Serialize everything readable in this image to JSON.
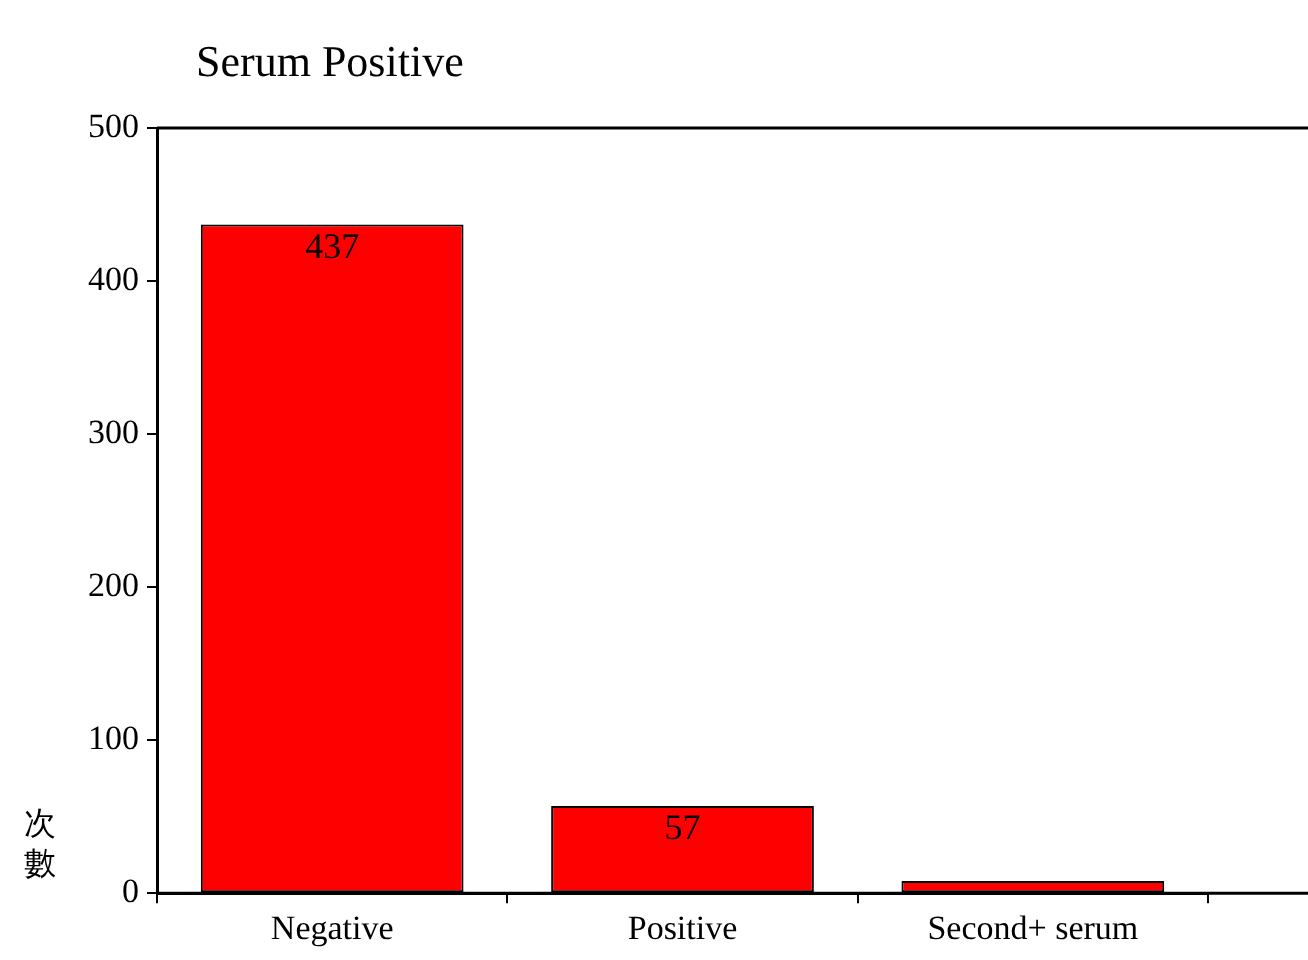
{
  "chart_data": {
    "type": "bar",
    "title": "Serum Positive",
    "ylabel": "次數",
    "categories": [
      "Negative",
      "Positive",
      "Second+ serum"
    ],
    "values": [
      437,
      57,
      8
    ],
    "color": "#ff0000",
    "value_labels": [
      "437",
      "57",
      null
    ],
    "ylim": [
      0,
      500
    ],
    "yticks": [
      0,
      100,
      200,
      300,
      400,
      500
    ]
  }
}
